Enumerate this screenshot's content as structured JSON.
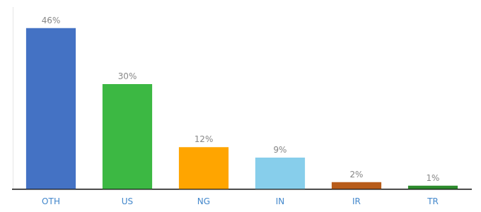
{
  "chart_data": {
    "type": "bar",
    "categories": [
      "OTH",
      "US",
      "NG",
      "IN",
      "IR",
      "TR"
    ],
    "values": [
      46,
      30,
      12,
      9,
      2,
      1
    ],
    "value_labels": [
      "46%",
      "30%",
      "12%",
      "9%",
      "2%",
      "1%"
    ],
    "colors": [
      "#4472C4",
      "#3CB843",
      "#FFA500",
      "#87CEEB",
      "#B85C1A",
      "#2D8B2D"
    ],
    "ylim": [
      0,
      52
    ],
    "grid": false,
    "data_labels": true,
    "tick_labels": "x"
  }
}
